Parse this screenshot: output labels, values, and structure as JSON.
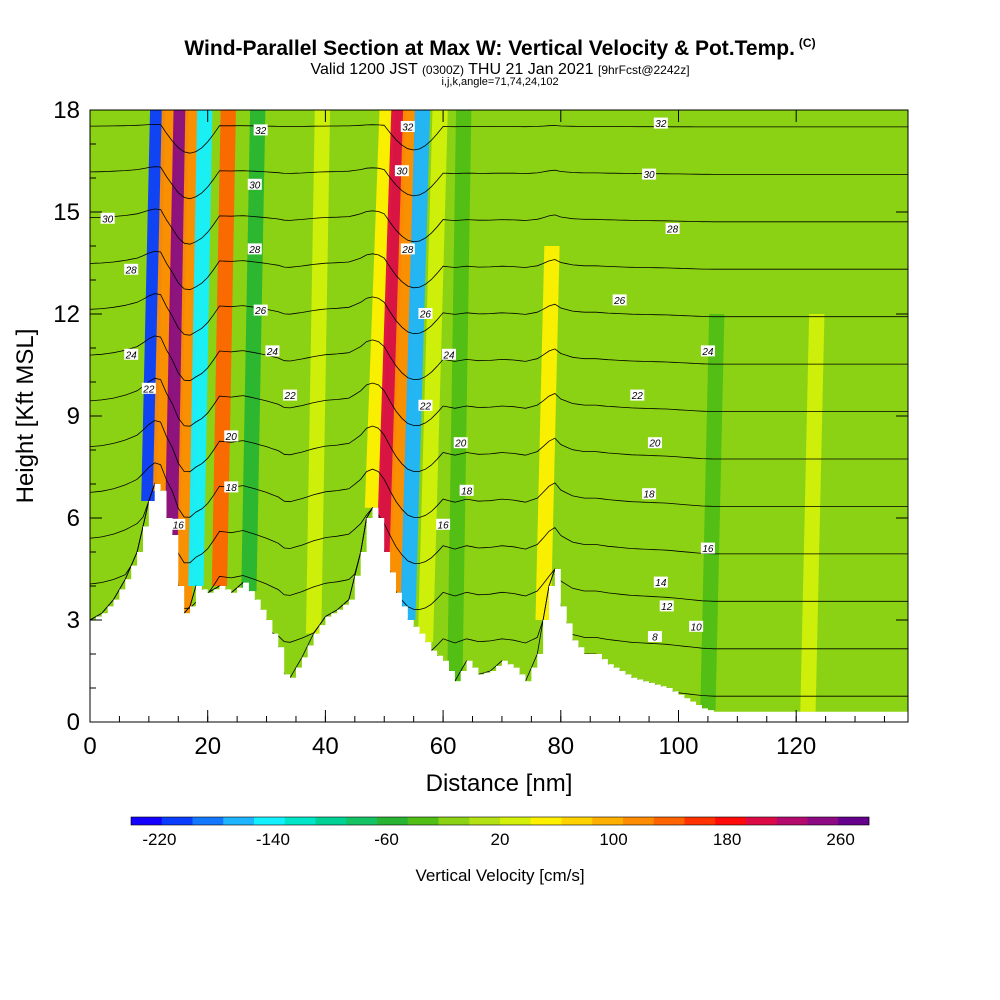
{
  "header": {
    "title": "Wind-Parallel Section at Max W: Vertical Velocity & Pot.Temp.",
    "title_mark": "(C)",
    "valid_prefix": "Valid 1200 JST",
    "valid_z": "(0300Z)",
    "valid_date": "THU 21 Jan 2021",
    "forecast": "[9hrFcst@2242z]",
    "indices": "i,j,k,angle=71,74,24,102"
  },
  "chart_data": {
    "type": "heatmap",
    "xlabel": "Distance [nm]",
    "ylabel": "Height [Kft MSL]",
    "xlim": [
      0,
      139
    ],
    "ylim": [
      0,
      18
    ],
    "x_ticks": [
      0,
      20,
      40,
      60,
      80,
      100,
      120
    ],
    "y_ticks": [
      0,
      3,
      6,
      9,
      12,
      15,
      18
    ],
    "grid": false,
    "colorbar": {
      "label": "Vertical Velocity [cm/s]",
      "placement": "bottom",
      "ticks": [
        -220,
        -140,
        -60,
        20,
        100,
        180,
        260
      ],
      "range": [
        -240,
        280
      ],
      "colors": [
        "#1400ff",
        "#0a3cff",
        "#1478ff",
        "#1eb4ff",
        "#14f0ff",
        "#00e6c8",
        "#00d296",
        "#14c364",
        "#28b432",
        "#50be14",
        "#8cd214",
        "#b4e114",
        "#d2f00a",
        "#fff000",
        "#ffd200",
        "#ffaf00",
        "#ff8c00",
        "#ff6400",
        "#ff3200",
        "#ff0a0a",
        "#dc0a46",
        "#b40a6e",
        "#8c0a82",
        "#64008c"
      ]
    },
    "terrain_profile": {
      "distance_nm": [
        0,
        2,
        4,
        6,
        8,
        10,
        11,
        12,
        13,
        14,
        15,
        16,
        17,
        18,
        20,
        22,
        24,
        26,
        28,
        30,
        32,
        33,
        34,
        36,
        38,
        40,
        42,
        44,
        46,
        47,
        48,
        49,
        50,
        52,
        54,
        56,
        58,
        60,
        62,
        64,
        66,
        68,
        70,
        72,
        74,
        76,
        78,
        79,
        80,
        82,
        84,
        86,
        88,
        90,
        92,
        94,
        96,
        98,
        100,
        102,
        104,
        106,
        110,
        120,
        130,
        139
      ],
      "height_kft": [
        3.0,
        3.2,
        3.6,
        4.2,
        5.0,
        6.5,
        7.0,
        6.8,
        6.0,
        5.5,
        4.0,
        3.2,
        3.4,
        4.0,
        3.8,
        4.0,
        3.8,
        4.1,
        3.6,
        3.0,
        2.2,
        1.4,
        1.3,
        1.9,
        2.6,
        3.1,
        3.3,
        3.6,
        5.0,
        6.0,
        6.3,
        6.0,
        5.0,
        3.8,
        3.0,
        2.6,
        2.1,
        1.8,
        1.2,
        1.8,
        1.4,
        1.5,
        1.8,
        1.6,
        1.2,
        2.0,
        4.0,
        4.5,
        3.4,
        2.4,
        2.0,
        2.0,
        1.7,
        1.5,
        1.3,
        1.2,
        1.1,
        1.0,
        0.8,
        0.6,
        0.4,
        0.3,
        0.3,
        0.3,
        0.3,
        0.3
      ]
    },
    "updraft_bands": [
      {
        "x": 10,
        "top_kft": 18,
        "w": -210
      },
      {
        "x": 12,
        "top_kft": 18,
        "w": 110
      },
      {
        "x": 14,
        "top_kft": 18,
        "w": 245
      },
      {
        "x": 16,
        "top_kft": 18,
        "w": 110
      },
      {
        "x": 18,
        "top_kft": 18,
        "w": -150
      },
      {
        "x": 22,
        "top_kft": 18,
        "w": 140
      },
      {
        "x": 27,
        "top_kft": 18,
        "w": -60
      },
      {
        "x": 38,
        "top_kft": 18,
        "w": 30
      },
      {
        "x": 48,
        "top_kft": 18,
        "w": 60
      },
      {
        "x": 50,
        "top_kft": 18,
        "w": 200
      },
      {
        "x": 52,
        "top_kft": 18,
        "w": 120
      },
      {
        "x": 54,
        "top_kft": 18,
        "w": -160
      },
      {
        "x": 57,
        "top_kft": 18,
        "w": 30
      },
      {
        "x": 62,
        "top_kft": 18,
        "w": -40
      },
      {
        "x": 77,
        "top_kft": 14,
        "w": 50
      },
      {
        "x": 84,
        "top_kft": 12,
        "w": -20
      },
      {
        "x": 105,
        "top_kft": 12,
        "w": -30
      },
      {
        "x": 122,
        "top_kft": 12,
        "w": 20
      }
    ],
    "potential_temperature_contours": [
      8,
      10,
      12,
      14,
      16,
      18,
      20,
      22,
      24,
      26,
      28,
      30,
      32
    ],
    "contour_labels": [
      {
        "v": "32",
        "x": 29,
        "y": 17.4
      },
      {
        "v": "30",
        "x": 28,
        "y": 15.8
      },
      {
        "v": "28",
        "x": 28,
        "y": 13.9
      },
      {
        "v": "26",
        "x": 29,
        "y": 12.1
      },
      {
        "v": "24",
        "x": 31,
        "y": 10.9
      },
      {
        "v": "22",
        "x": 34,
        "y": 9.6
      },
      {
        "v": "20",
        "x": 24,
        "y": 8.4
      },
      {
        "v": "18",
        "x": 24,
        "y": 6.9
      },
      {
        "v": "16",
        "x": 15,
        "y": 5.8
      },
      {
        "v": "30",
        "x": 3,
        "y": 14.8
      },
      {
        "v": "28",
        "x": 7,
        "y": 13.3
      },
      {
        "v": "24",
        "x": 7,
        "y": 10.8
      },
      {
        "v": "22",
        "x": 10,
        "y": 9.8
      },
      {
        "v": "32",
        "x": 54,
        "y": 17.5
      },
      {
        "v": "30",
        "x": 53,
        "y": 16.2
      },
      {
        "v": "28",
        "x": 54,
        "y": 13.9
      },
      {
        "v": "26",
        "x": 57,
        "y": 12.0
      },
      {
        "v": "24",
        "x": 61,
        "y": 10.8
      },
      {
        "v": "22",
        "x": 57,
        "y": 9.3
      },
      {
        "v": "20",
        "x": 63,
        "y": 8.2
      },
      {
        "v": "18",
        "x": 64,
        "y": 6.8
      },
      {
        "v": "16",
        "x": 60,
        "y": 5.8
      },
      {
        "v": "32",
        "x": 97,
        "y": 17.6
      },
      {
        "v": "30",
        "x": 95,
        "y": 16.1
      },
      {
        "v": "28",
        "x": 99,
        "y": 14.5
      },
      {
        "v": "26",
        "x": 90,
        "y": 12.4
      },
      {
        "v": "24",
        "x": 105,
        "y": 10.9
      },
      {
        "v": "22",
        "x": 93,
        "y": 9.6
      },
      {
        "v": "20",
        "x": 96,
        "y": 8.2
      },
      {
        "v": "18",
        "x": 95,
        "y": 6.7
      },
      {
        "v": "16",
        "x": 105,
        "y": 5.1
      },
      {
        "v": "14",
        "x": 97,
        "y": 4.1
      },
      {
        "v": "12",
        "x": 98,
        "y": 3.4
      },
      {
        "v": "10",
        "x": 103,
        "y": 2.8
      },
      {
        "v": "8",
        "x": 96,
        "y": 2.5
      }
    ]
  }
}
